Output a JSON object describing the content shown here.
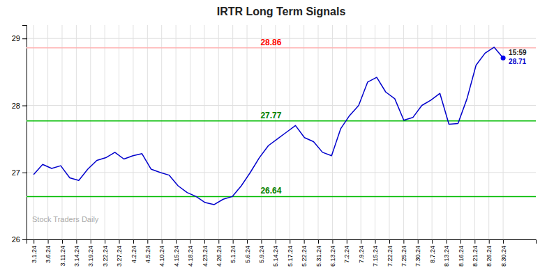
{
  "chart_data": {
    "type": "line",
    "title": "IRTR Long Term Signals",
    "grid": true,
    "xlim": [
      -0.5,
      35.3
    ],
    "xticks": [
      {
        "value": 0,
        "label": "3.1.24"
      },
      {
        "value": 1,
        "label": "3.6.24"
      },
      {
        "value": 2,
        "label": "3.11.24"
      },
      {
        "value": 3,
        "label": "3.14.24"
      },
      {
        "value": 4,
        "label": "3.19.24"
      },
      {
        "value": 5,
        "label": "3.22.24"
      },
      {
        "value": 6,
        "label": "3.27.24"
      },
      {
        "value": 7,
        "label": "4.2.24"
      },
      {
        "value": 8,
        "label": "4.5.24"
      },
      {
        "value": 9,
        "label": "4.10.24"
      },
      {
        "value": 10,
        "label": "4.15.24"
      },
      {
        "value": 11,
        "label": "4.18.24"
      },
      {
        "value": 12,
        "label": "4.23.24"
      },
      {
        "value": 13,
        "label": "4.26.24"
      },
      {
        "value": 14,
        "label": "5.1.24"
      },
      {
        "value": 15,
        "label": "5.6.24"
      },
      {
        "value": 16,
        "label": "5.9.24"
      },
      {
        "value": 17,
        "label": "5.14.24"
      },
      {
        "value": 18,
        "label": "5.17.24"
      },
      {
        "value": 19,
        "label": "5.22.24"
      },
      {
        "value": 20,
        "label": "5.31.24"
      },
      {
        "value": 21,
        "label": "6.13.24"
      },
      {
        "value": 22,
        "label": "7.2.24"
      },
      {
        "value": 23,
        "label": "7.9.24"
      },
      {
        "value": 24,
        "label": "7.15.24"
      },
      {
        "value": 25,
        "label": "7.22.24"
      },
      {
        "value": 26,
        "label": "7.25.24"
      },
      {
        "value": 27,
        "label": "7.30.24"
      },
      {
        "value": 28,
        "label": "8.7.24"
      },
      {
        "value": 29,
        "label": "8.13.24"
      },
      {
        "value": 30,
        "label": "8.16.24"
      },
      {
        "value": 31,
        "label": "8.21.24"
      },
      {
        "value": 32,
        "label": "8.26.24"
      },
      {
        "value": 33,
        "label": "8.30.24"
      }
    ],
    "ylim": [
      26.0,
      29.2
    ],
    "yticks": [
      26,
      27,
      28,
      29
    ],
    "reference_lines": [
      {
        "y": 28.86,
        "color": "#ffb3b3"
      },
      {
        "y": 27.77,
        "color": "#00bb00"
      },
      {
        "y": 26.64,
        "color": "#00bb00"
      }
    ],
    "series": [
      {
        "type": "line",
        "color": "#0000cc",
        "x": [
          0,
          0.634615,
          1.269231,
          1.903846,
          2.538462,
          3.173077,
          3.807692,
          4.442308,
          5.076923,
          5.711538,
          6.346154,
          6.980769,
          7.615385,
          8.25,
          8.884615,
          9.519231,
          10.153846,
          10.788462,
          11.423077,
          12.057692,
          12.692308,
          13.326923,
          13.961538,
          14.596154,
          15.230769,
          15.865385,
          16.5,
          17.134615,
          17.769231,
          18.403846,
          19.038462,
          19.673077,
          20.307692,
          20.942308,
          21.576923,
          22.211538,
          22.846154,
          23.480769,
          24.115385,
          24.75,
          25.384615,
          26.019231,
          26.653846,
          27.288462,
          27.923077,
          28.557692,
          29.192308,
          29.826923,
          30.461538,
          31.096154,
          31.730769,
          32.365385,
          33
        ],
        "values": [
          26.97,
          27.12,
          27.06,
          27.1,
          26.92,
          26.88,
          27.05,
          27.18,
          27.22,
          27.3,
          27.2,
          27.25,
          27.28,
          27.05,
          27.0,
          26.96,
          26.8,
          26.7,
          26.64,
          26.55,
          26.52,
          26.6,
          26.64,
          26.8,
          27.0,
          27.22,
          27.4,
          27.5,
          27.6,
          27.7,
          27.52,
          27.46,
          27.3,
          27.25,
          27.65,
          27.85,
          28.0,
          28.35,
          28.42,
          28.2,
          28.1,
          27.78,
          27.82,
          28.0,
          28.08,
          28.18,
          27.72,
          27.73,
          28.1,
          28.6,
          28.78,
          28.87,
          28.71
        ]
      },
      {
        "type": "scatter",
        "color": "#0000ee",
        "marker": "circle",
        "x": [
          33
        ],
        "values": [
          28.71
        ]
      }
    ],
    "annotations": [
      {
        "text": "28.86",
        "y": 28.86,
        "color": "red"
      },
      {
        "text": "27.77",
        "y": 27.77,
        "color": "green"
      },
      {
        "text": "26.64",
        "y": 26.64,
        "color": "green"
      },
      {
        "text": "15:59",
        "x": 33,
        "y": 28.71
      },
      {
        "text": "28.71",
        "x": 33,
        "y": 28.71,
        "color": "#0000cc"
      },
      {
        "text": "Stock Traders Daily"
      }
    ]
  }
}
